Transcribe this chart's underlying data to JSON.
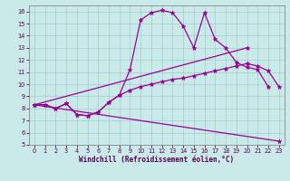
{
  "xlabel": "Windchill (Refroidissement éolien,°C)",
  "xlim": [
    -0.5,
    23.5
  ],
  "ylim": [
    5,
    16.5
  ],
  "xticks": [
    0,
    1,
    2,
    3,
    4,
    5,
    6,
    7,
    8,
    9,
    10,
    11,
    12,
    13,
    14,
    15,
    16,
    17,
    18,
    19,
    20,
    21,
    22,
    23
  ],
  "yticks": [
    5,
    6,
    7,
    8,
    9,
    10,
    11,
    12,
    13,
    14,
    15,
    16
  ],
  "bg_color": "#caeaea",
  "line_color": "#990099",
  "grid_color": "#a0cccc",
  "series1_x": [
    0,
    1,
    2,
    3,
    4,
    5,
    6,
    7,
    8,
    9,
    10,
    11,
    12,
    13,
    14,
    15,
    16,
    17,
    18,
    19,
    20,
    21,
    22
  ],
  "series1_y": [
    8.3,
    8.3,
    8.0,
    8.4,
    7.5,
    7.4,
    7.7,
    8.5,
    9.1,
    11.2,
    15.3,
    15.9,
    16.1,
    15.9,
    14.8,
    13.0,
    15.9,
    13.7,
    13.0,
    11.8,
    11.4,
    11.2,
    9.8
  ],
  "series2_x": [
    0,
    1,
    2,
    3,
    4,
    5,
    6,
    7,
    8,
    9,
    10,
    11,
    12,
    13,
    14,
    15,
    16,
    17,
    18,
    19,
    20,
    21,
    22,
    23
  ],
  "series2_y": [
    8.3,
    8.3,
    8.0,
    8.4,
    7.5,
    7.4,
    7.7,
    8.5,
    9.1,
    9.5,
    9.8,
    10.0,
    10.2,
    10.4,
    10.5,
    10.7,
    10.9,
    11.1,
    11.3,
    11.5,
    11.7,
    11.5,
    11.1,
    9.8
  ],
  "series3_x": [
    0,
    23
  ],
  "series3_y": [
    8.3,
    5.3
  ],
  "series4_x": [
    0,
    20
  ],
  "series4_y": [
    8.3,
    13.0
  ],
  "marker": "*",
  "markersize": 3.5,
  "linewidth": 0.9
}
